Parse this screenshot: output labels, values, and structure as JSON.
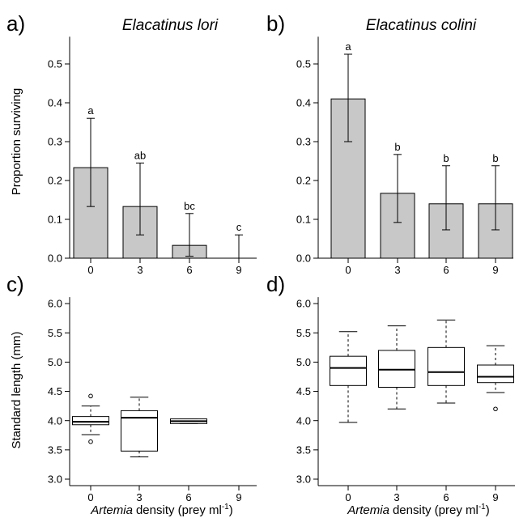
{
  "colors": {
    "bar_fill": "#c8c8c8",
    "box_fill": "#ffffff",
    "ink": "#000000"
  },
  "chart_data": [
    {
      "panel_label": "a)",
      "type": "bar",
      "title": "Elacatinus lori",
      "ylabel": "Proportion surviving",
      "categories": [
        "0",
        "3",
        "6",
        "9"
      ],
      "values": [
        0.233,
        0.133,
        0.033,
        0.0
      ],
      "error_low": [
        0.133,
        0.06,
        0.005,
        0.0
      ],
      "error_high": [
        0.36,
        0.245,
        0.115,
        0.06
      ],
      "annotations": [
        "a",
        "ab",
        "bc",
        "c"
      ],
      "yticks": [
        "0.0",
        "0.1",
        "0.2",
        "0.3",
        "0.4",
        "0.5"
      ],
      "ylim": [
        0,
        0.57
      ],
      "grid": false
    },
    {
      "panel_label": "b)",
      "type": "bar",
      "title": "Elacatinus colini",
      "categories": [
        "0",
        "3",
        "6",
        "9"
      ],
      "values": [
        0.41,
        0.167,
        0.14,
        0.14
      ],
      "error_low": [
        0.3,
        0.092,
        0.073,
        0.073
      ],
      "error_high": [
        0.525,
        0.267,
        0.238,
        0.238
      ],
      "annotations": [
        "a",
        "b",
        "b",
        "b"
      ],
      "yticks": [
        "0.0",
        "0.1",
        "0.2",
        "0.3",
        "0.4",
        "0.5"
      ],
      "ylim": [
        0,
        0.57
      ],
      "grid": false
    },
    {
      "panel_label": "c)",
      "type": "boxplot",
      "ylabel": "Standard length (mm)",
      "xlabel": {
        "italic": "Artemia",
        "text": "density (prey ml",
        "sup": "-1",
        "close": ")"
      },
      "categories": [
        "0",
        "3",
        "6",
        "9"
      ],
      "boxes": [
        {
          "whisker_low": 3.76,
          "q1": 3.93,
          "median": 3.98,
          "q3": 4.07,
          "whisker_high": 4.25,
          "outliers": [
            4.42,
            3.64
          ]
        },
        {
          "whisker_low": 3.38,
          "q1": 3.48,
          "median": 4.05,
          "q3": 4.17,
          "whisker_high": 4.4,
          "outliers": []
        },
        {
          "whisker_low": 3.95,
          "q1": 3.95,
          "median": 3.99,
          "q3": 4.03,
          "whisker_high": 4.03,
          "outliers": []
        },
        null
      ],
      "yticks": [
        "3.0",
        "3.5",
        "4.0",
        "4.5",
        "5.0",
        "5.5",
        "6.0"
      ],
      "ylim": [
        2.89,
        6.11
      ],
      "grid": false
    },
    {
      "panel_label": "d)",
      "type": "boxplot",
      "xlabel": {
        "italic": "Artemia",
        "text": "density (prey ml",
        "sup": "-1",
        "close": ")"
      },
      "categories": [
        "0",
        "3",
        "6",
        "9"
      ],
      "boxes": [
        {
          "whisker_low": 3.97,
          "q1": 4.6,
          "median": 4.9,
          "q3": 5.1,
          "whisker_high": 5.52,
          "outliers": []
        },
        {
          "whisker_low": 4.2,
          "q1": 4.57,
          "median": 4.87,
          "q3": 5.2,
          "whisker_high": 5.62,
          "outliers": []
        },
        {
          "whisker_low": 4.3,
          "q1": 4.6,
          "median": 4.83,
          "q3": 5.25,
          "whisker_high": 5.72,
          "outliers": []
        },
        {
          "whisker_low": 4.48,
          "q1": 4.65,
          "median": 4.75,
          "q3": 4.95,
          "whisker_high": 5.28,
          "outliers": [
            4.2
          ]
        }
      ],
      "yticks": [
        "3.0",
        "3.5",
        "4.0",
        "4.5",
        "5.0",
        "5.5",
        "6.0"
      ],
      "ylim": [
        2.89,
        6.11
      ],
      "grid": false
    }
  ]
}
